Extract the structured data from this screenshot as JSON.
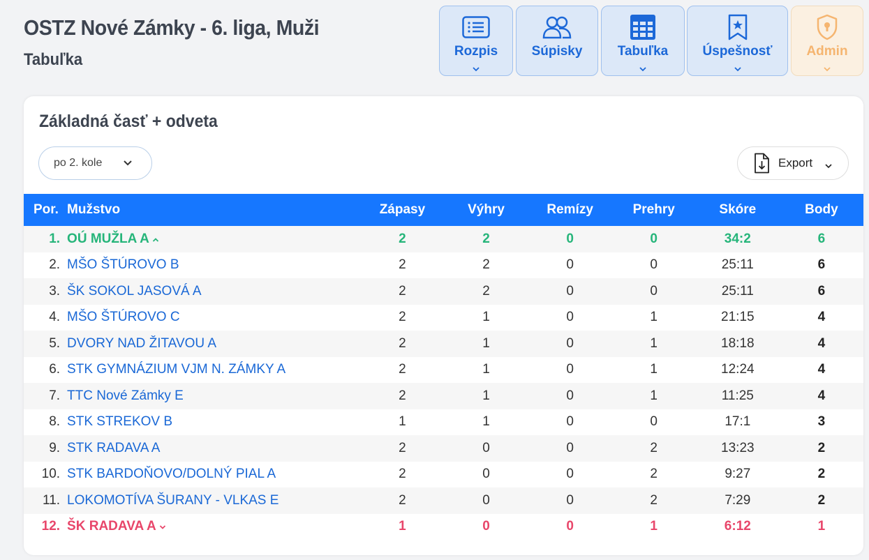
{
  "header": {
    "title": "OSTZ Nové Zámky - 6. liga, Muži",
    "subtitle": "Tabuľka"
  },
  "nav": {
    "items": [
      {
        "label": "Rozpis",
        "icon": "list-icon"
      },
      {
        "label": "Súpisky",
        "icon": "users-icon"
      },
      {
        "label": "Tabuľka",
        "icon": "table-icon"
      },
      {
        "label": "Úspešnosť",
        "icon": "bookmark-star-icon"
      },
      {
        "label": "Admin",
        "icon": "shield-lock-icon"
      }
    ]
  },
  "card": {
    "title": "Základná časť + odveta",
    "round_select": "po 2. kole",
    "export_label": "Export"
  },
  "table": {
    "headers": [
      "Por.",
      "Mužstvo",
      "Zápasy",
      "Výhry",
      "Remízy",
      "Prehry",
      "Skóre",
      "Body"
    ],
    "rows": [
      {
        "pos": "1.",
        "team": "OÚ MUŽLA A",
        "z": "2",
        "v": "2",
        "r": "0",
        "p": "0",
        "s": "34:2",
        "b": "6"
      },
      {
        "pos": "2.",
        "team": "MŠO ŠTÚROVO B",
        "z": "2",
        "v": "2",
        "r": "0",
        "p": "0",
        "s": "25:11",
        "b": "6"
      },
      {
        "pos": "3.",
        "team": "ŠK SOKOL JASOVÁ A",
        "z": "2",
        "v": "2",
        "r": "0",
        "p": "0",
        "s": "25:11",
        "b": "6"
      },
      {
        "pos": "4.",
        "team": "MŠO ŠTÚROVO C",
        "z": "2",
        "v": "1",
        "r": "0",
        "p": "1",
        "s": "21:15",
        "b": "4"
      },
      {
        "pos": "5.",
        "team": "DVORY NAD ŽITAVOU A",
        "z": "2",
        "v": "1",
        "r": "0",
        "p": "1",
        "s": "18:18",
        "b": "4"
      },
      {
        "pos": "6.",
        "team": "STK GYMNÁZIUM VJM N. ZÁMKY A",
        "z": "2",
        "v": "1",
        "r": "0",
        "p": "1",
        "s": "12:24",
        "b": "4"
      },
      {
        "pos": "7.",
        "team": "TTC Nové Zámky E",
        "z": "2",
        "v": "1",
        "r": "0",
        "p": "1",
        "s": "11:25",
        "b": "4"
      },
      {
        "pos": "8.",
        "team": "STK STREKOV B",
        "z": "1",
        "v": "1",
        "r": "0",
        "p": "0",
        "s": "17:1",
        "b": "3"
      },
      {
        "pos": "9.",
        "team": "STK RADAVA A",
        "z": "2",
        "v": "0",
        "r": "0",
        "p": "2",
        "s": "13:23",
        "b": "2"
      },
      {
        "pos": "10.",
        "team": "STK BARDOŇOVO/DOLNÝ PIAL A",
        "z": "2",
        "v": "0",
        "r": "0",
        "p": "2",
        "s": "9:27",
        "b": "2"
      },
      {
        "pos": "11.",
        "team": "LOKOMOTÍVA ŠURANY - VLKAS E",
        "z": "2",
        "v": "0",
        "r": "0",
        "p": "2",
        "s": "7:29",
        "b": "2"
      },
      {
        "pos": "12.",
        "team": "ŠK RADAVA A",
        "z": "1",
        "v": "0",
        "r": "0",
        "p": "1",
        "s": "6:12",
        "b": "1"
      }
    ]
  },
  "colors": {
    "accent": "#1677ff",
    "promotion": "#26b57a",
    "relegation": "#e8466a",
    "link": "#1a68d6"
  }
}
